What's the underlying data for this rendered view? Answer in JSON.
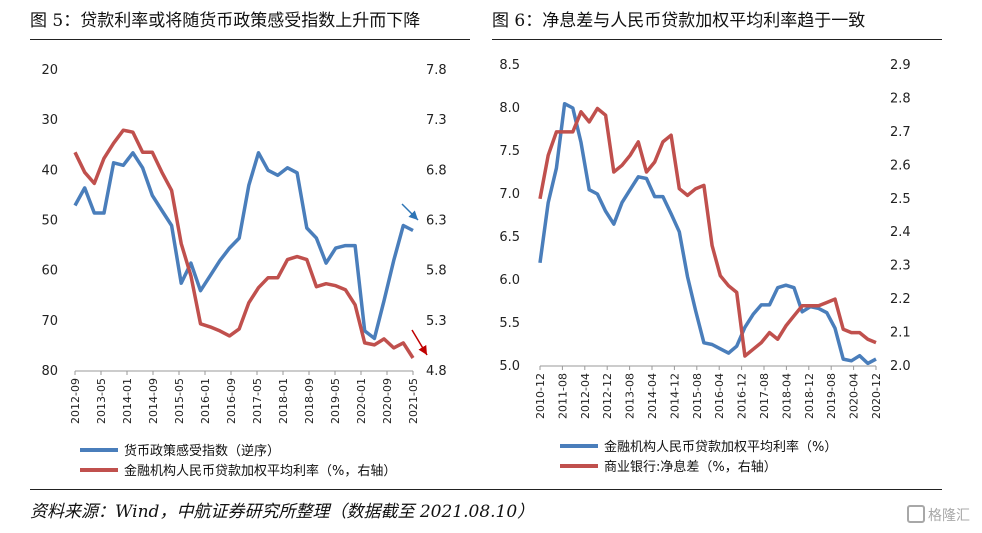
{
  "titles": {
    "left": "图 5：贷款利率或将随货币政策感受指数上升而下降",
    "right": "图 6：净息差与人民币贷款加权平均利率趋于一致"
  },
  "footer": "资料来源：Wind，中航证券研究所整理（数据截至 2021.08.10）",
  "watermark": "格隆汇",
  "colors": {
    "blue": "#4a7ebb",
    "red": "#c0504d",
    "arrow_blue": "#2e75b6",
    "arrow_red": "#c00000"
  },
  "chart_data": [
    {
      "type": "line",
      "y_left": {
        "lim": [
          20,
          80
        ],
        "reversed": true,
        "ticks": [
          20,
          30,
          40,
          50,
          60,
          70,
          80
        ]
      },
      "y_right": {
        "lim": [
          4.8,
          7.8
        ],
        "ticks": [
          4.8,
          5.3,
          5.8,
          6.3,
          6.8,
          7.3,
          7.8
        ]
      },
      "x_ticks": [
        "2012-09",
        "2013-05",
        "2014-01",
        "2014-09",
        "2015-05",
        "2016-01",
        "2016-09",
        "2017-05",
        "2018-01",
        "2018-09",
        "2019-05",
        "2020-01",
        "2020-09",
        "2021-05"
      ],
      "x_range": [
        0,
        35
      ],
      "series": [
        {
          "name": "货币政策感受指数（逆序）",
          "axis": "left",
          "color": "#4a7ebb",
          "x": [
            0,
            1,
            2,
            3,
            4,
            5,
            6,
            7,
            8,
            9,
            10,
            11,
            12,
            13,
            14,
            15,
            16,
            17,
            18,
            19,
            20,
            21,
            22,
            23,
            24,
            25,
            26,
            27,
            28,
            29,
            30,
            31,
            32,
            33,
            34,
            35
          ],
          "y": [
            47,
            43.5,
            48.5,
            48.5,
            38.5,
            39,
            36.5,
            39.5,
            45,
            48,
            51,
            62.5,
            58.5,
            64,
            61,
            58,
            55.5,
            53.5,
            43,
            36.5,
            40,
            41,
            39.5,
            40.5,
            51.5,
            53.5,
            58.5,
            55.5,
            55,
            55,
            72,
            73.5,
            66,
            58,
            51,
            52
          ]
        },
        {
          "name": "金融机构人民币贷款加权平均利率（%，右轴）",
          "axis": "right",
          "color": "#c0504d",
          "x": [
            0,
            1,
            2,
            3,
            4,
            5,
            6,
            7,
            8,
            9,
            10,
            11,
            12,
            13,
            14,
            15,
            16,
            17,
            18,
            19,
            20,
            21,
            22,
            23,
            24,
            25,
            26,
            27,
            28,
            29,
            30,
            31,
            32,
            33,
            34,
            35
          ],
          "y": [
            6.98,
            6.78,
            6.67,
            6.92,
            7.07,
            7.2,
            7.18,
            6.98,
            6.98,
            6.78,
            6.6,
            6.07,
            5.75,
            5.27,
            5.24,
            5.2,
            5.15,
            5.22,
            5.48,
            5.63,
            5.73,
            5.73,
            5.91,
            5.94,
            5.91,
            5.64,
            5.67,
            5.65,
            5.61,
            5.46,
            5.08,
            5.06,
            5.12,
            5.03,
            5.08,
            4.93
          ]
        }
      ]
    },
    {
      "type": "line",
      "y_left": {
        "lim": [
          5.0,
          8.5
        ],
        "ticks": [
          5.0,
          5.5,
          6.0,
          6.5,
          7.0,
          7.5,
          8.0,
          8.5
        ]
      },
      "y_right": {
        "lim": [
          2.0,
          2.9
        ],
        "ticks": [
          2.0,
          2.1,
          2.2,
          2.3,
          2.4,
          2.5,
          2.6,
          2.7,
          2.8,
          2.9
        ]
      },
      "x_ticks": [
        "2010-12",
        "2011-08",
        "2012-04",
        "2012-12",
        "2013-08",
        "2014-04",
        "2014-12",
        "2015-08",
        "2016-04",
        "2016-12",
        "2017-08",
        "2018-04",
        "2018-12",
        "2019-08",
        "2020-04",
        "2020-12"
      ],
      "x_range": [
        0,
        41
      ],
      "series": [
        {
          "name": "金融机构人民币贷款加权平均利率（%）",
          "axis": "left",
          "color": "#4a7ebb",
          "x": [
            0,
            1,
            2,
            3,
            4,
            5,
            6,
            7,
            8,
            9,
            10,
            11,
            12,
            13,
            14,
            15,
            16,
            17,
            18,
            19,
            20,
            21,
            22,
            23,
            24,
            25,
            26,
            27,
            28,
            29,
            30,
            31,
            32,
            33,
            34,
            35,
            36,
            37,
            38,
            39,
            40,
            41
          ],
          "y": [
            6.2,
            6.9,
            7.3,
            8.05,
            8.0,
            7.6,
            7.05,
            7.0,
            6.8,
            6.65,
            6.9,
            7.05,
            7.2,
            7.18,
            6.97,
            6.97,
            6.77,
            6.56,
            6.04,
            5.64,
            5.27,
            5.25,
            5.2,
            5.15,
            5.23,
            5.45,
            5.6,
            5.71,
            5.71,
            5.91,
            5.94,
            5.91,
            5.63,
            5.69,
            5.67,
            5.62,
            5.44,
            5.08,
            5.06,
            5.12,
            5.03,
            5.08
          ]
        },
        {
          "name": "商业银行:净息差（%，右轴）",
          "axis": "right",
          "color": "#c0504d",
          "x": [
            0,
            1,
            2,
            3,
            4,
            5,
            6,
            7,
            8,
            9,
            10,
            11,
            12,
            13,
            14,
            15,
            16,
            17,
            18,
            19,
            20,
            21,
            22,
            23,
            24,
            25,
            26,
            27,
            28,
            29,
            30,
            31,
            32,
            33,
            34,
            35,
            36,
            37,
            38,
            39,
            40,
            41
          ],
          "y": [
            2.5,
            2.63,
            2.7,
            2.7,
            2.7,
            2.76,
            2.73,
            2.77,
            2.75,
            2.58,
            2.6,
            2.63,
            2.67,
            2.58,
            2.61,
            2.67,
            2.69,
            2.53,
            2.51,
            2.53,
            2.54,
            2.36,
            2.27,
            2.24,
            2.22,
            2.03,
            2.05,
            2.07,
            2.1,
            2.08,
            2.12,
            2.15,
            2.18,
            2.18,
            2.18,
            2.19,
            2.2,
            2.11,
            2.1,
            2.1,
            2.08,
            2.07
          ]
        }
      ]
    }
  ]
}
